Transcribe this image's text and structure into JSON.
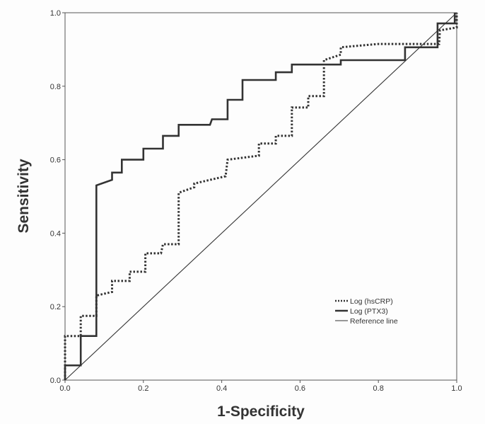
{
  "chart_data": {
    "type": "line",
    "title": "",
    "xlabel": "1-Specificity",
    "ylabel": "Sensitivity",
    "xlim": [
      0,
      1
    ],
    "ylim": [
      0,
      1
    ],
    "xticks": [
      "0.0",
      "0.2",
      "0.4",
      "0.6",
      "0.8",
      "1.0"
    ],
    "yticks": [
      "0.0",
      "0.2",
      "0.4",
      "0.6",
      "0.8",
      "1.0"
    ],
    "grid": false,
    "legend_position": "bottom-right",
    "series": [
      {
        "name": "Log (hsCRP)",
        "style": "dotted",
        "color": "#333333",
        "points": [
          [
            0,
            0
          ],
          [
            0,
            0.12
          ],
          [
            0.04,
            0.12
          ],
          [
            0.04,
            0.175
          ],
          [
            0.08,
            0.175
          ],
          [
            0.08,
            0.23
          ],
          [
            0.12,
            0.24
          ],
          [
            0.12,
            0.27
          ],
          [
            0.165,
            0.27
          ],
          [
            0.165,
            0.295
          ],
          [
            0.205,
            0.295
          ],
          [
            0.205,
            0.345
          ],
          [
            0.245,
            0.345
          ],
          [
            0.25,
            0.37
          ],
          [
            0.29,
            0.37
          ],
          [
            0.29,
            0.51
          ],
          [
            0.33,
            0.525
          ],
          [
            0.33,
            0.535
          ],
          [
            0.41,
            0.555
          ],
          [
            0.415,
            0.6
          ],
          [
            0.495,
            0.611
          ],
          [
            0.495,
            0.644
          ],
          [
            0.538,
            0.644
          ],
          [
            0.538,
            0.665
          ],
          [
            0.579,
            0.665
          ],
          [
            0.579,
            0.742
          ],
          [
            0.621,
            0.742
          ],
          [
            0.621,
            0.773
          ],
          [
            0.661,
            0.773
          ],
          [
            0.661,
            0.871
          ],
          [
            0.704,
            0.886
          ],
          [
            0.704,
            0.906
          ],
          [
            0.8,
            0.915
          ],
          [
            0.955,
            0.915
          ],
          [
            0.957,
            0.952
          ],
          [
            1,
            0.96
          ],
          [
            1,
            1
          ]
        ]
      },
      {
        "name": "Log (PTX3)",
        "style": "solid-thick",
        "color": "#333333",
        "points": [
          [
            0,
            0
          ],
          [
            0,
            0.04
          ],
          [
            0.04,
            0.04
          ],
          [
            0.04,
            0.12
          ],
          [
            0.08,
            0.12
          ],
          [
            0.08,
            0.53
          ],
          [
            0.12,
            0.545
          ],
          [
            0.12,
            0.565
          ],
          [
            0.145,
            0.565
          ],
          [
            0.145,
            0.6
          ],
          [
            0.2,
            0.6
          ],
          [
            0.2,
            0.63
          ],
          [
            0.25,
            0.63
          ],
          [
            0.25,
            0.665
          ],
          [
            0.29,
            0.665
          ],
          [
            0.29,
            0.695
          ],
          [
            0.37,
            0.695
          ],
          [
            0.375,
            0.71
          ],
          [
            0.415,
            0.71
          ],
          [
            0.415,
            0.763
          ],
          [
            0.453,
            0.763
          ],
          [
            0.453,
            0.817
          ],
          [
            0.538,
            0.817
          ],
          [
            0.538,
            0.838
          ],
          [
            0.579,
            0.838
          ],
          [
            0.579,
            0.859
          ],
          [
            0.704,
            0.859
          ],
          [
            0.704,
            0.871
          ],
          [
            0.868,
            0.871
          ],
          [
            0.868,
            0.906
          ],
          [
            0.951,
            0.906
          ],
          [
            0.951,
            0.971
          ],
          [
            0.995,
            0.971
          ],
          [
            0.995,
            1
          ]
        ]
      },
      {
        "name": "Reference line",
        "style": "solid-thin",
        "color": "#333333",
        "points": [
          [
            0,
            0
          ],
          [
            1,
            1
          ]
        ]
      }
    ]
  }
}
